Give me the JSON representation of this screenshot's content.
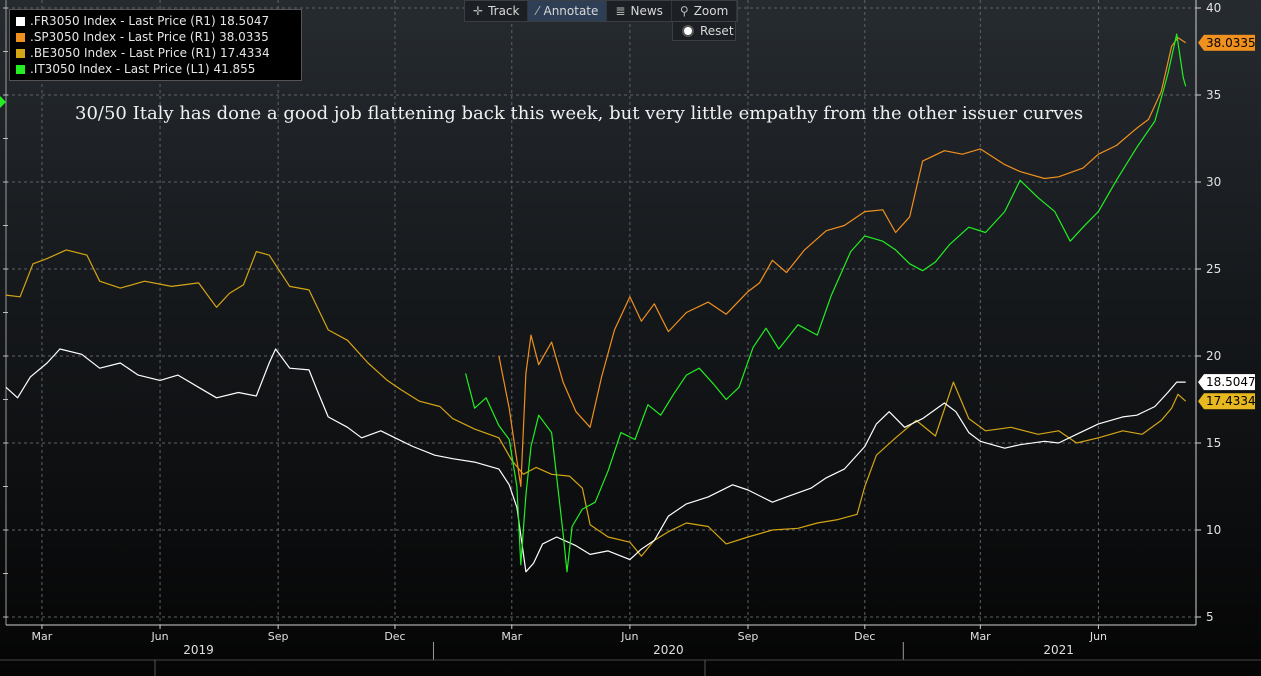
{
  "toolbar": {
    "buttons": [
      {
        "label": "Track",
        "icon": "crosshair-icon",
        "glyph": "✛"
      },
      {
        "label": "Annotate",
        "icon": "pencil-icon",
        "glyph": "⁄"
      },
      {
        "label": "News",
        "icon": "news-icon",
        "glyph": "≣"
      },
      {
        "label": "Zoom",
        "icon": "magnifier-icon",
        "glyph": "⚲"
      }
    ],
    "active": "Annotate",
    "reset_label": "Reset"
  },
  "annotation": "30/50 Italy has done a good job flattening back this week, but very little empathy from the other issuer curves",
  "chart_data": {
    "type": "line",
    "title": "",
    "legend_position": "top-left",
    "grid": true,
    "x_range": [
      "2019-02-01",
      "2021-08-16"
    ],
    "right_axis": {
      "min": 5,
      "max": 40,
      "ticks": [
        5,
        10,
        15,
        20,
        25,
        30,
        35,
        40
      ]
    },
    "left_axis": {
      "ticks_labeled": false
    },
    "month_ticks": [
      {
        "label": "Mar",
        "date": "2019-03-01"
      },
      {
        "label": "Jun",
        "date": "2019-06-01"
      },
      {
        "label": "Sep",
        "date": "2019-09-01"
      },
      {
        "label": "Dec",
        "date": "2019-12-01"
      },
      {
        "label": "Mar",
        "date": "2020-03-01"
      },
      {
        "label": "Jun",
        "date": "2020-06-01"
      },
      {
        "label": "Sep",
        "date": "2020-09-01"
      },
      {
        "label": "Dec",
        "date": "2020-12-01"
      },
      {
        "label": "Mar",
        "date": "2021-03-01"
      },
      {
        "label": "Jun",
        "date": "2021-06-01"
      }
    ],
    "year_labels": [
      {
        "label": "2019",
        "date": "2019-07-01"
      },
      {
        "label": "2020",
        "date": "2020-07-01"
      },
      {
        "label": "2021",
        "date": "2021-05-01"
      }
    ],
    "year_separators": [
      "2019-12-31",
      "2020-12-31"
    ],
    "series": [
      {
        "name": ".FR3050 Index - Last Price (R1)",
        "last": "18.5047",
        "color": "#ffffff",
        "label_bg": "#ffffff",
        "label_fg": "#000000",
        "points": [
          [
            "2019-02-01",
            18.2
          ],
          [
            "2019-02-10",
            17.6
          ],
          [
            "2019-02-20",
            18.8
          ],
          [
            "2019-03-05",
            19.6
          ],
          [
            "2019-03-15",
            20.4
          ],
          [
            "2019-04-01",
            20.1
          ],
          [
            "2019-04-15",
            19.3
          ],
          [
            "2019-05-01",
            19.6
          ],
          [
            "2019-05-15",
            18.9
          ],
          [
            "2019-06-01",
            18.6
          ],
          [
            "2019-06-15",
            18.9
          ],
          [
            "2019-07-01",
            18.2
          ],
          [
            "2019-07-15",
            17.6
          ],
          [
            "2019-08-01",
            17.9
          ],
          [
            "2019-08-15",
            17.7
          ],
          [
            "2019-08-25",
            19.6
          ],
          [
            "2019-08-30",
            20.4
          ],
          [
            "2019-09-10",
            19.3
          ],
          [
            "2019-09-25",
            19.2
          ],
          [
            "2019-10-01",
            18.1
          ],
          [
            "2019-10-10",
            16.5
          ],
          [
            "2019-10-25",
            15.9
          ],
          [
            "2019-11-05",
            15.3
          ],
          [
            "2019-11-20",
            15.7
          ],
          [
            "2019-12-01",
            15.3
          ],
          [
            "2019-12-15",
            14.8
          ],
          [
            "2020-01-01",
            14.3
          ],
          [
            "2020-01-15",
            14.1
          ],
          [
            "2020-02-01",
            13.9
          ],
          [
            "2020-02-20",
            13.5
          ],
          [
            "2020-02-28",
            12.6
          ],
          [
            "2020-03-05",
            11.3
          ],
          [
            "2020-03-12",
            7.6
          ],
          [
            "2020-03-18",
            8.1
          ],
          [
            "2020-03-25",
            9.2
          ],
          [
            "2020-04-05",
            9.6
          ],
          [
            "2020-04-20",
            9.1
          ],
          [
            "2020-05-01",
            8.6
          ],
          [
            "2020-05-15",
            8.8
          ],
          [
            "2020-06-01",
            8.3
          ],
          [
            "2020-06-10",
            8.9
          ],
          [
            "2020-06-20",
            9.4
          ],
          [
            "2020-07-01",
            10.8
          ],
          [
            "2020-07-15",
            11.5
          ],
          [
            "2020-08-01",
            11.9
          ],
          [
            "2020-08-20",
            12.6
          ],
          [
            "2020-09-01",
            12.3
          ],
          [
            "2020-09-20",
            11.6
          ],
          [
            "2020-10-01",
            11.9
          ],
          [
            "2020-10-20",
            12.4
          ],
          [
            "2020-11-01",
            13.0
          ],
          [
            "2020-11-15",
            13.5
          ],
          [
            "2020-12-01",
            14.8
          ],
          [
            "2020-12-10",
            16.1
          ],
          [
            "2020-12-20",
            16.8
          ],
          [
            "2021-01-01",
            15.9
          ],
          [
            "2021-01-15",
            16.4
          ],
          [
            "2021-02-01",
            17.3
          ],
          [
            "2021-02-10",
            16.8
          ],
          [
            "2021-02-20",
            15.6
          ],
          [
            "2021-03-01",
            15.1
          ],
          [
            "2021-03-20",
            14.7
          ],
          [
            "2021-04-01",
            14.9
          ],
          [
            "2021-04-20",
            15.1
          ],
          [
            "2021-05-01",
            15.0
          ],
          [
            "2021-05-15",
            15.5
          ],
          [
            "2021-06-01",
            16.1
          ],
          [
            "2021-06-20",
            16.5
          ],
          [
            "2021-07-01",
            16.6
          ],
          [
            "2021-07-15",
            17.1
          ],
          [
            "2021-07-25",
            17.9
          ],
          [
            "2021-08-01",
            18.5
          ],
          [
            "2021-08-08",
            18.5
          ]
        ]
      },
      {
        "name": ".SP3050 Index - Last Price (R1)",
        "last": "38.0335",
        "color": "#f0901e",
        "label_bg": "#f0901e",
        "label_fg": "#000000",
        "points": [
          [
            "2020-02-20",
            20.0
          ],
          [
            "2020-02-28",
            17.0
          ],
          [
            "2020-03-03",
            15.0
          ],
          [
            "2020-03-08",
            12.5
          ],
          [
            "2020-03-12",
            19.0
          ],
          [
            "2020-03-16",
            21.2
          ],
          [
            "2020-03-22",
            19.5
          ],
          [
            "2020-04-01",
            20.8
          ],
          [
            "2020-04-10",
            18.5
          ],
          [
            "2020-04-20",
            16.8
          ],
          [
            "2020-05-01",
            15.9
          ],
          [
            "2020-05-10",
            18.8
          ],
          [
            "2020-05-20",
            21.5
          ],
          [
            "2020-06-01",
            23.4
          ],
          [
            "2020-06-10",
            22.0
          ],
          [
            "2020-06-20",
            23.0
          ],
          [
            "2020-07-01",
            21.4
          ],
          [
            "2020-07-15",
            22.5
          ],
          [
            "2020-08-01",
            23.1
          ],
          [
            "2020-08-15",
            22.4
          ],
          [
            "2020-09-01",
            23.7
          ],
          [
            "2020-09-10",
            24.2
          ],
          [
            "2020-09-20",
            25.5
          ],
          [
            "2020-10-01",
            24.8
          ],
          [
            "2020-10-15",
            26.1
          ],
          [
            "2020-11-01",
            27.2
          ],
          [
            "2020-11-15",
            27.5
          ],
          [
            "2020-12-01",
            28.3
          ],
          [
            "2020-12-15",
            28.4
          ],
          [
            "2020-12-25",
            27.1
          ],
          [
            "2021-01-05",
            28.0
          ],
          [
            "2021-01-15",
            31.2
          ],
          [
            "2021-02-01",
            31.8
          ],
          [
            "2021-02-15",
            31.6
          ],
          [
            "2021-03-01",
            31.9
          ],
          [
            "2021-03-20",
            31.0
          ],
          [
            "2021-04-01",
            30.6
          ],
          [
            "2021-04-20",
            30.2
          ],
          [
            "2021-05-01",
            30.3
          ],
          [
            "2021-05-20",
            30.8
          ],
          [
            "2021-06-01",
            31.6
          ],
          [
            "2021-06-15",
            32.1
          ],
          [
            "2021-07-01",
            33.1
          ],
          [
            "2021-07-10",
            33.6
          ],
          [
            "2021-07-20",
            35.2
          ],
          [
            "2021-07-28",
            37.8
          ],
          [
            "2021-08-02",
            38.3
          ],
          [
            "2021-08-08",
            38.0
          ]
        ]
      },
      {
        "name": ".BE3050 Index - Last Price (R1)",
        "last": "17.4334",
        "color": "#d4a514",
        "label_bg": "#e8b820",
        "label_fg": "#000000",
        "points": [
          [
            "2019-02-01",
            23.5
          ],
          [
            "2019-02-12",
            23.4
          ],
          [
            "2019-02-22",
            25.3
          ],
          [
            "2019-03-05",
            25.6
          ],
          [
            "2019-03-20",
            26.1
          ],
          [
            "2019-04-05",
            25.8
          ],
          [
            "2019-04-15",
            24.3
          ],
          [
            "2019-05-01",
            23.9
          ],
          [
            "2019-05-20",
            24.3
          ],
          [
            "2019-06-10",
            24.0
          ],
          [
            "2019-07-01",
            24.2
          ],
          [
            "2019-07-15",
            22.8
          ],
          [
            "2019-07-25",
            23.6
          ],
          [
            "2019-08-05",
            24.1
          ],
          [
            "2019-08-15",
            26.0
          ],
          [
            "2019-08-25",
            25.8
          ],
          [
            "2019-09-10",
            24.0
          ],
          [
            "2019-09-25",
            23.8
          ],
          [
            "2019-10-10",
            21.5
          ],
          [
            "2019-10-25",
            20.9
          ],
          [
            "2019-11-10",
            19.6
          ],
          [
            "2019-11-25",
            18.6
          ],
          [
            "2019-12-05",
            18.1
          ],
          [
            "2019-12-20",
            17.4
          ],
          [
            "2020-01-05",
            17.1
          ],
          [
            "2020-01-15",
            16.4
          ],
          [
            "2020-02-01",
            15.8
          ],
          [
            "2020-02-20",
            15.3
          ],
          [
            "2020-03-01",
            14.0
          ],
          [
            "2020-03-10",
            13.2
          ],
          [
            "2020-03-20",
            13.6
          ],
          [
            "2020-04-01",
            13.2
          ],
          [
            "2020-04-15",
            13.1
          ],
          [
            "2020-04-25",
            12.4
          ],
          [
            "2020-05-01",
            10.3
          ],
          [
            "2020-05-15",
            9.6
          ],
          [
            "2020-06-01",
            9.3
          ],
          [
            "2020-06-10",
            8.5
          ],
          [
            "2020-06-20",
            9.4
          ],
          [
            "2020-07-01",
            9.9
          ],
          [
            "2020-07-15",
            10.4
          ],
          [
            "2020-08-01",
            10.2
          ],
          [
            "2020-08-15",
            9.2
          ],
          [
            "2020-09-01",
            9.6
          ],
          [
            "2020-09-20",
            10.0
          ],
          [
            "2020-10-10",
            10.1
          ],
          [
            "2020-10-25",
            10.4
          ],
          [
            "2020-11-10",
            10.6
          ],
          [
            "2020-11-25",
            10.9
          ],
          [
            "2020-12-01",
            12.5
          ],
          [
            "2020-12-10",
            14.3
          ],
          [
            "2020-12-25",
            15.3
          ],
          [
            "2021-01-10",
            16.3
          ],
          [
            "2021-01-25",
            15.4
          ],
          [
            "2021-02-08",
            18.5
          ],
          [
            "2021-02-20",
            16.4
          ],
          [
            "2021-03-05",
            15.7
          ],
          [
            "2021-03-25",
            15.9
          ],
          [
            "2021-04-15",
            15.5
          ],
          [
            "2021-05-01",
            15.7
          ],
          [
            "2021-05-15",
            15.0
          ],
          [
            "2021-06-01",
            15.3
          ],
          [
            "2021-06-20",
            15.7
          ],
          [
            "2021-07-05",
            15.5
          ],
          [
            "2021-07-20",
            16.3
          ],
          [
            "2021-07-28",
            17.0
          ],
          [
            "2021-08-02",
            17.8
          ],
          [
            "2021-08-08",
            17.4
          ]
        ]
      },
      {
        "name": ".IT3050 Index - Last Price (L1)",
        "last": "41.855",
        "color": "#22ee22",
        "label_bg": "",
        "label_fg": "",
        "points": [
          [
            "2020-01-25",
            19.0
          ],
          [
            "2020-02-01",
            17.0
          ],
          [
            "2020-02-10",
            17.6
          ],
          [
            "2020-02-20",
            16.0
          ],
          [
            "2020-02-28",
            15.2
          ],
          [
            "2020-03-05",
            12.5
          ],
          [
            "2020-03-08",
            8.0
          ],
          [
            "2020-03-12",
            12.0
          ],
          [
            "2020-03-16",
            14.8
          ],
          [
            "2020-03-22",
            16.6
          ],
          [
            "2020-04-01",
            15.6
          ],
          [
            "2020-04-10",
            9.8
          ],
          [
            "2020-04-13",
            7.6
          ],
          [
            "2020-04-17",
            10.2
          ],
          [
            "2020-04-25",
            11.2
          ],
          [
            "2020-05-05",
            11.6
          ],
          [
            "2020-05-15",
            13.4
          ],
          [
            "2020-05-25",
            15.6
          ],
          [
            "2020-06-05",
            15.2
          ],
          [
            "2020-06-15",
            17.2
          ],
          [
            "2020-06-25",
            16.6
          ],
          [
            "2020-07-05",
            17.8
          ],
          [
            "2020-07-15",
            18.9
          ],
          [
            "2020-07-25",
            19.3
          ],
          [
            "2020-08-05",
            18.4
          ],
          [
            "2020-08-15",
            17.5
          ],
          [
            "2020-08-25",
            18.2
          ],
          [
            "2020-09-05",
            20.5
          ],
          [
            "2020-09-15",
            21.6
          ],
          [
            "2020-09-25",
            20.4
          ],
          [
            "2020-10-10",
            21.8
          ],
          [
            "2020-10-25",
            21.2
          ],
          [
            "2020-11-05",
            23.5
          ],
          [
            "2020-11-20",
            26.0
          ],
          [
            "2020-12-01",
            26.9
          ],
          [
            "2020-12-15",
            26.6
          ],
          [
            "2020-12-25",
            26.1
          ],
          [
            "2021-01-05",
            25.3
          ],
          [
            "2021-01-15",
            24.9
          ],
          [
            "2021-01-25",
            25.4
          ],
          [
            "2021-02-05",
            26.4
          ],
          [
            "2021-02-20",
            27.4
          ],
          [
            "2021-03-05",
            27.1
          ],
          [
            "2021-03-20",
            28.3
          ],
          [
            "2021-04-01",
            30.1
          ],
          [
            "2021-04-15",
            29.1
          ],
          [
            "2021-04-28",
            28.3
          ],
          [
            "2021-05-10",
            26.6
          ],
          [
            "2021-05-20",
            27.4
          ],
          [
            "2021-06-01",
            28.3
          ],
          [
            "2021-06-15",
            30.1
          ],
          [
            "2021-07-01",
            32.0
          ],
          [
            "2021-07-15",
            33.5
          ],
          [
            "2021-07-25",
            36.2
          ],
          [
            "2021-08-01",
            38.5
          ],
          [
            "2021-08-06",
            36.0
          ],
          [
            "2021-08-08",
            35.5
          ]
        ]
      }
    ]
  }
}
